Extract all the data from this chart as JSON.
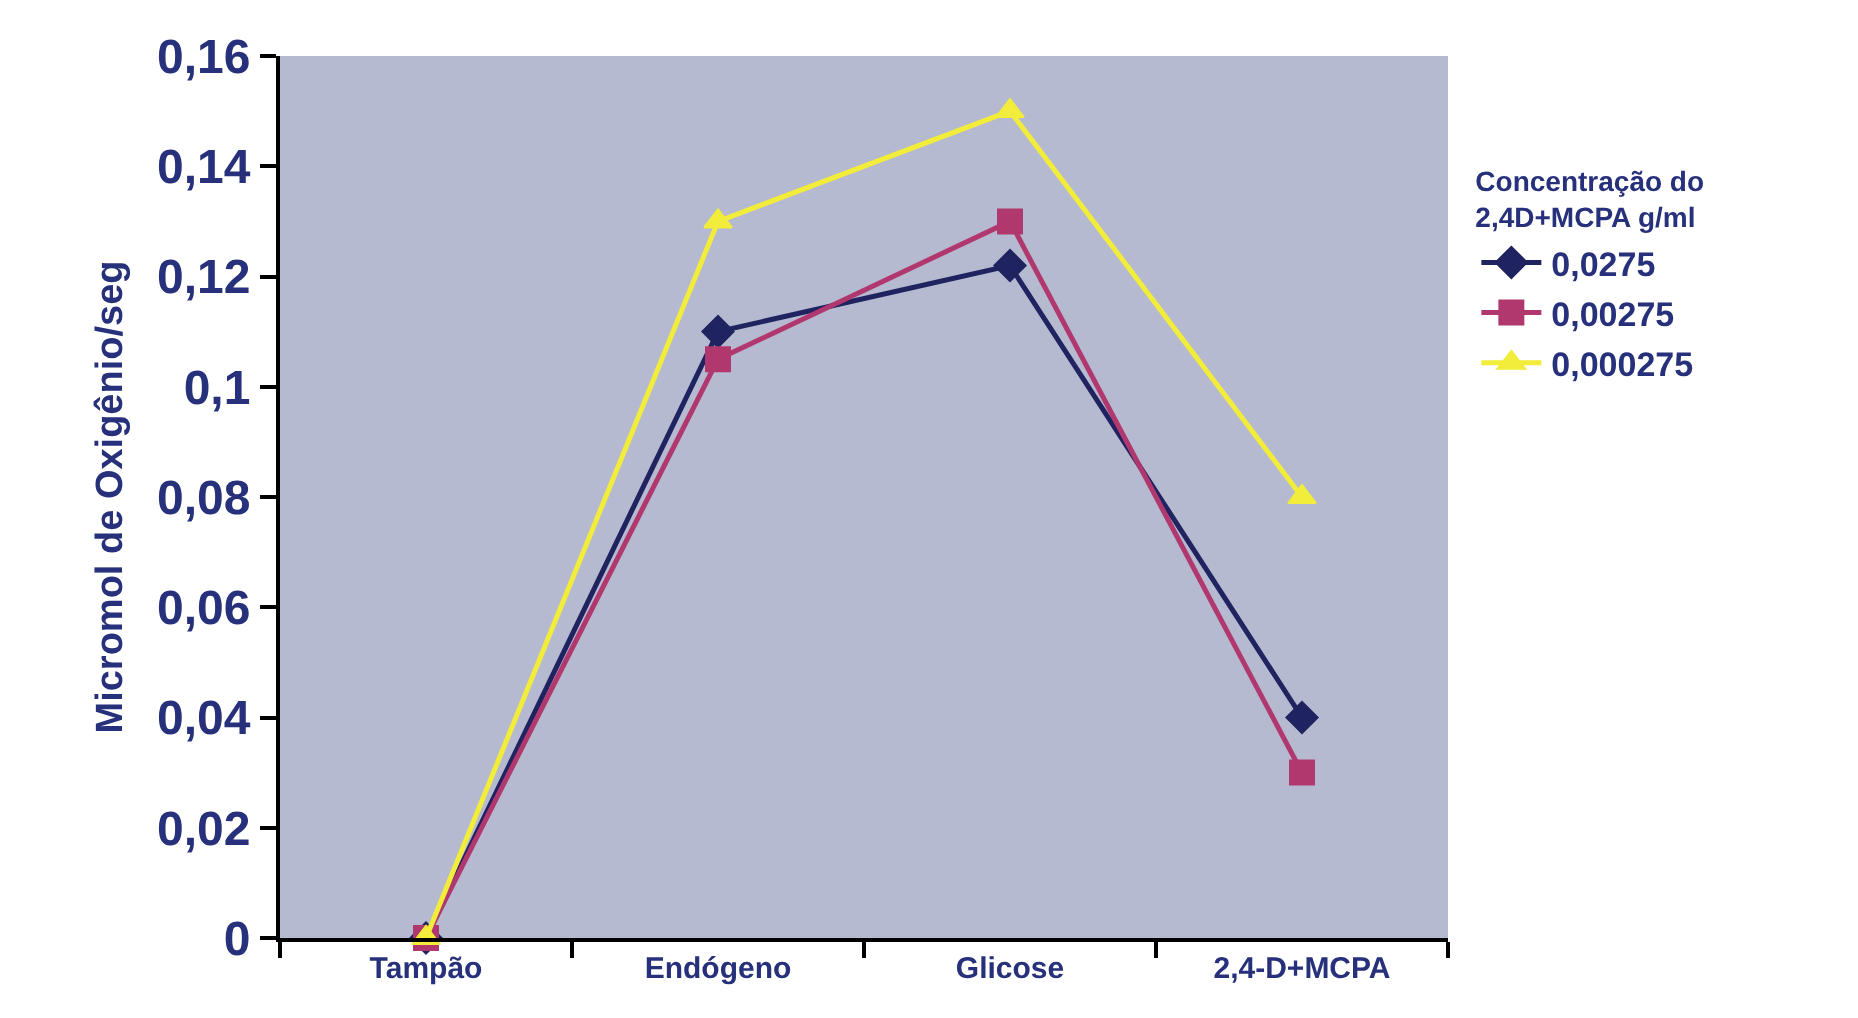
{
  "chart_data": {
    "type": "line",
    "ylabel": "Micromol de Oxigênio/seg",
    "legend_title": "Concentração do 2,4D+MCPA g/ml",
    "legend": "right",
    "grid": false,
    "categories": [
      "Tampão",
      "Endógeno",
      "Glicose",
      "2,4-D+MCPA"
    ],
    "ylim": [
      0,
      0.16
    ],
    "yticks": [
      0,
      {
        "value": 0.02,
        "label": "0,02"
      },
      {
        "value": 0.04,
        "label": "0,04"
      },
      {
        "value": 0.06,
        "label": "0,06"
      },
      {
        "value": 0.08,
        "label": "0,08"
      },
      {
        "value": 0.1,
        "label": "0,1"
      },
      {
        "value": 0.12,
        "label": "0,12"
      },
      {
        "value": 0.14,
        "label": "0,14"
      },
      {
        "value": 0.16,
        "label": "0,16"
      }
    ],
    "series": [
      {
        "name": "0,0275",
        "color": "#1f2360",
        "marker": "diamond",
        "values": [
          0,
          0.11,
          0.122,
          0.04
        ]
      },
      {
        "name": "0,00275",
        "color": "#b0386e",
        "marker": "square",
        "values": [
          0,
          0.105,
          0.13,
          0.03
        ]
      },
      {
        "name": "0,000275",
        "color": "#f2ec3a",
        "marker": "triangle",
        "values": [
          0,
          0.13,
          0.15,
          0.08
        ]
      }
    ]
  }
}
